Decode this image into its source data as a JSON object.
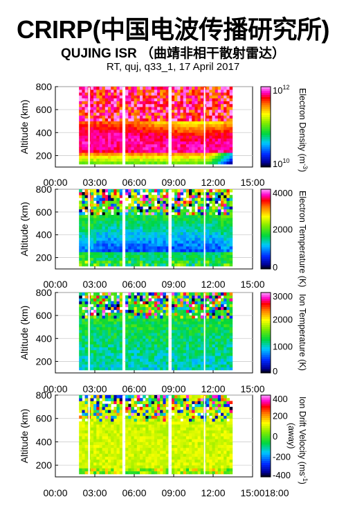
{
  "header": {
    "title": "CRIRP(中国电波传播研究所)",
    "subtitle": "QUJING ISR （曲靖非相干散射雷达）",
    "run_info": "RT, quj, q33_1, 17 April 2017"
  },
  "chart_data": [
    {
      "type": "heatmap",
      "quantity": "density",
      "ylabel": "Altitude (km)",
      "colorbar_label": "Electron Density (m-3)",
      "colorbar_scale": "log",
      "colorbar_range": [
        10000000000.0,
        1000000000000.0
      ],
      "colorbar_ticks": [
        "10^12",
        "10^10"
      ],
      "x_ticks": [
        "00:00",
        "03:00",
        "06:00",
        "09:00",
        "12:00",
        "15:00"
      ],
      "y_ticks": [
        800,
        600,
        400,
        200
      ],
      "ylim": [
        100,
        800
      ],
      "xlim_hours": [
        0,
        15
      ],
      "data_time_range_hours": [
        1.8,
        13.3
      ]
    },
    {
      "type": "heatmap",
      "quantity": "te",
      "ylabel": "Altitude (km)",
      "colorbar_label": "Electron Temperature (K)",
      "colorbar_range": [
        0,
        4000
      ],
      "colorbar_ticks": [
        4000,
        2000,
        0
      ],
      "x_ticks": [
        "00:00",
        "03:00",
        "06:00",
        "09:00",
        "12:00",
        "15:00"
      ],
      "y_ticks": [
        800,
        600,
        400,
        200
      ],
      "ylim": [
        100,
        800
      ],
      "xlim_hours": [
        0,
        15
      ],
      "data_time_range_hours": [
        1.8,
        13.3
      ]
    },
    {
      "type": "heatmap",
      "quantity": "ti",
      "ylabel": "Altitude (km)",
      "colorbar_label": "Ion Temperature (K)",
      "colorbar_range": [
        0,
        3000
      ],
      "colorbar_ticks": [
        3000,
        2000,
        1000,
        0
      ],
      "x_ticks": [
        "00:00",
        "03:00",
        "06:00",
        "09:00",
        "12:00",
        "15:00"
      ],
      "y_ticks": [
        800,
        600,
        400,
        200
      ],
      "ylim": [
        100,
        800
      ],
      "xlim_hours": [
        0,
        15
      ],
      "data_time_range_hours": [
        1.8,
        13.3
      ]
    },
    {
      "type": "heatmap",
      "quantity": "vi",
      "ylabel": "Altitude (km)",
      "colorbar_label": "Ion Drift Velocity (ms-1)",
      "colorbar_sublabel": "(away)",
      "colorbar_range": [
        -400,
        400
      ],
      "colorbar_ticks": [
        400,
        200,
        0,
        -200,
        -400
      ],
      "x_ticks": [
        "00:00",
        "03:00",
        "06:00",
        "09:00",
        "12:00",
        "15:00"
      ],
      "extra_x_tick": "18:00",
      "y_ticks": [
        800,
        600,
        400,
        200
      ],
      "ylim": [
        100,
        800
      ],
      "xlim_hours": [
        0,
        15
      ],
      "data_time_range_hours": [
        1.8,
        13.3
      ]
    }
  ]
}
